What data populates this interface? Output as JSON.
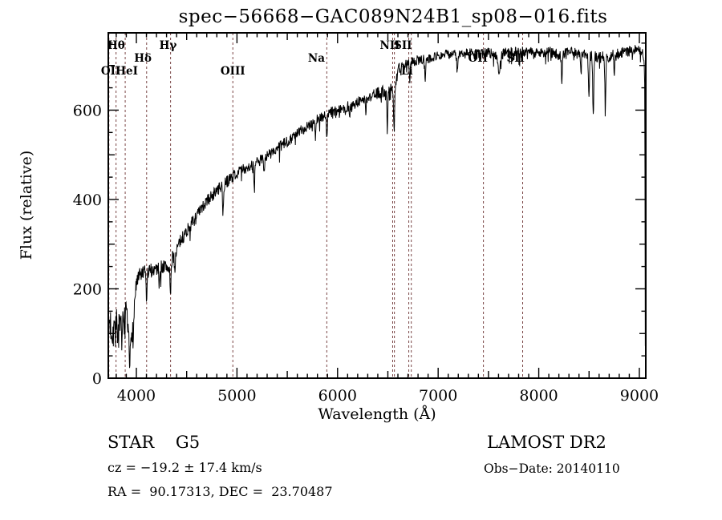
{
  "window": {
    "kind": "spectrum-plot-image"
  },
  "chart_data": {
    "type": "line",
    "title": "spec−56668−GAC089N24B1_sp08−016.fits",
    "xlabel": "Wavelength (Å)",
    "ylabel": "Flux (relative)",
    "xlim": [
      3721,
      9064
    ],
    "ylim": [
      0,
      773
    ],
    "x_major_ticks": [
      4000,
      5000,
      6000,
      7000,
      8000,
      9000
    ],
    "x_minor_step": 100,
    "y_major_ticks": [
      0,
      200,
      400,
      600
    ],
    "y_minor_step": 50,
    "grid": false,
    "legend": "none",
    "line_color": "#000000",
    "marker_line_color": "#7a4545",
    "sample_step_angstrom": 3.5,
    "noise_seed": 7,
    "noise_profile": {
      "spike_probability": 0.05,
      "spike_scale": 2.0
    },
    "line_markers": [
      {
        "label": "Hθ",
        "wavelength": 3798,
        "label_anchor": 3800,
        "row": 1
      },
      {
        "label": "OII",
        "wavelength": 3727,
        "label_anchor": 3745,
        "row": 3
      },
      {
        "label": "HeI",
        "wavelength": 3889,
        "label_anchor": 3905,
        "row": 3
      },
      {
        "label": "Hδ",
        "wavelength": 4102,
        "label_anchor": 4065,
        "row": 2
      },
      {
        "label": "Hγ",
        "wavelength": 4340,
        "label_anchor": 4315,
        "row": 1
      },
      {
        "label": "OIII",
        "wavelength": 4959,
        "label_anchor": 4959,
        "row": 3
      },
      {
        "label": "Na",
        "wavelength": 5893,
        "label_anchor": 5790,
        "row": 2
      },
      {
        "label": "NII",
        "wavelength": 6548,
        "label_anchor": 6520,
        "row": 1
      },
      {
        "label": "SII",
        "wavelength": 6565,
        "label_anchor": 6650,
        "row": 1
      },
      {
        "label": "Li",
        "wavelength": 6708,
        "label_anchor": 6690,
        "row": 3
      },
      {
        "label": "",
        "wavelength": 6733,
        "label_anchor": 6733,
        "row": 1
      },
      {
        "label": "OII",
        "wavelength": 7450,
        "label_anchor": 7395,
        "row": 2
      },
      {
        "label": "SII",
        "wavelength": 7840,
        "label_anchor": 7770,
        "row": 2
      }
    ],
    "spectrum_continuum_anchors": [
      [
        3721,
        12,
        0
      ],
      [
        3728,
        130,
        55
      ],
      [
        3760,
        110,
        48
      ],
      [
        3800,
        115,
        45
      ],
      [
        3850,
        100,
        42
      ],
      [
        3900,
        135,
        38
      ],
      [
        3935,
        72,
        25
      ],
      [
        3965,
        125,
        30
      ],
      [
        3995,
        205,
        22
      ],
      [
        4040,
        232,
        18
      ],
      [
        4100,
        235,
        18
      ],
      [
        4160,
        243,
        16
      ],
      [
        4250,
        250,
        16
      ],
      [
        4320,
        248,
        18
      ],
      [
        4360,
        268,
        16
      ],
      [
        4440,
        308,
        15
      ],
      [
        4500,
        330,
        15
      ],
      [
        4600,
        362,
        15
      ],
      [
        4700,
        396,
        14
      ],
      [
        4800,
        420,
        14
      ],
      [
        4900,
        440,
        14
      ],
      [
        5000,
        460,
        13
      ],
      [
        5100,
        472,
        13
      ],
      [
        5200,
        482,
        13
      ],
      [
        5300,
        498,
        13
      ],
      [
        5400,
        513,
        13
      ],
      [
        5500,
        530,
        13
      ],
      [
        5600,
        548,
        12
      ],
      [
        5700,
        565,
        12
      ],
      [
        5800,
        580,
        12
      ],
      [
        5900,
        592,
        12
      ],
      [
        6000,
        600,
        12
      ],
      [
        6100,
        608,
        12
      ],
      [
        6200,
        618,
        12
      ],
      [
        6300,
        628,
        13
      ],
      [
        6400,
        638,
        13
      ],
      [
        6500,
        645,
        14
      ],
      [
        6560,
        650,
        14
      ],
      [
        6610,
        692,
        12
      ],
      [
        6700,
        706,
        11
      ],
      [
        6800,
        712,
        11
      ],
      [
        6900,
        716,
        11
      ],
      [
        7000,
        722,
        11
      ],
      [
        7100,
        726,
        11
      ],
      [
        7200,
        722,
        12
      ],
      [
        7300,
        728,
        12
      ],
      [
        7400,
        724,
        12
      ],
      [
        7500,
        730,
        12
      ],
      [
        7600,
        722,
        13
      ],
      [
        7700,
        732,
        12
      ],
      [
        7800,
        728,
        13
      ],
      [
        7900,
        732,
        12
      ],
      [
        8000,
        728,
        12
      ],
      [
        8100,
        732,
        12
      ],
      [
        8200,
        722,
        13
      ],
      [
        8300,
        730,
        12
      ],
      [
        8400,
        726,
        12
      ],
      [
        8500,
        722,
        13
      ],
      [
        8600,
        718,
        13
      ],
      [
        8700,
        720,
        13
      ],
      [
        8800,
        728,
        12
      ],
      [
        8900,
        732,
        12
      ],
      [
        8990,
        736,
        11
      ],
      [
        9040,
        725,
        10
      ],
      [
        9052,
        690,
        0
      ],
      [
        9056,
        450,
        0
      ],
      [
        9060,
        18,
        0
      ]
    ],
    "absorption_features": [
      [
        3933,
        55,
        5
      ],
      [
        3970,
        45,
        5
      ],
      [
        4102,
        60,
        5
      ],
      [
        4227,
        35,
        4
      ],
      [
        4340,
        80,
        5
      ],
      [
        4383,
        45,
        4
      ],
      [
        4861,
        70,
        5
      ],
      [
        5172,
        60,
        5
      ],
      [
        5270,
        30,
        4
      ],
      [
        5780,
        45,
        4
      ],
      [
        5893,
        55,
        5
      ],
      [
        6122,
        30,
        4
      ],
      [
        6280,
        35,
        4
      ],
      [
        6495,
        90,
        4
      ],
      [
        6563,
        100,
        5
      ],
      [
        6717,
        40,
        4
      ],
      [
        6870,
        35,
        6
      ],
      [
        7190,
        30,
        6
      ],
      [
        7605,
        45,
        8
      ],
      [
        8230,
        60,
        5
      ],
      [
        8420,
        40,
        4
      ],
      [
        8498,
        95,
        5
      ],
      [
        8542,
        140,
        5
      ],
      [
        8662,
        110,
        5
      ],
      [
        8750,
        40,
        4
      ]
    ]
  },
  "footer": {
    "left": {
      "line1": "STAR    G5",
      "line2": "cz = −19.2 ± 17.4 km/s",
      "line3": "RA =  90.17313, DEC =  23.70487"
    },
    "right": {
      "line1": "LAMOST DR2",
      "line2": "Obs−Date: 20140110"
    }
  }
}
